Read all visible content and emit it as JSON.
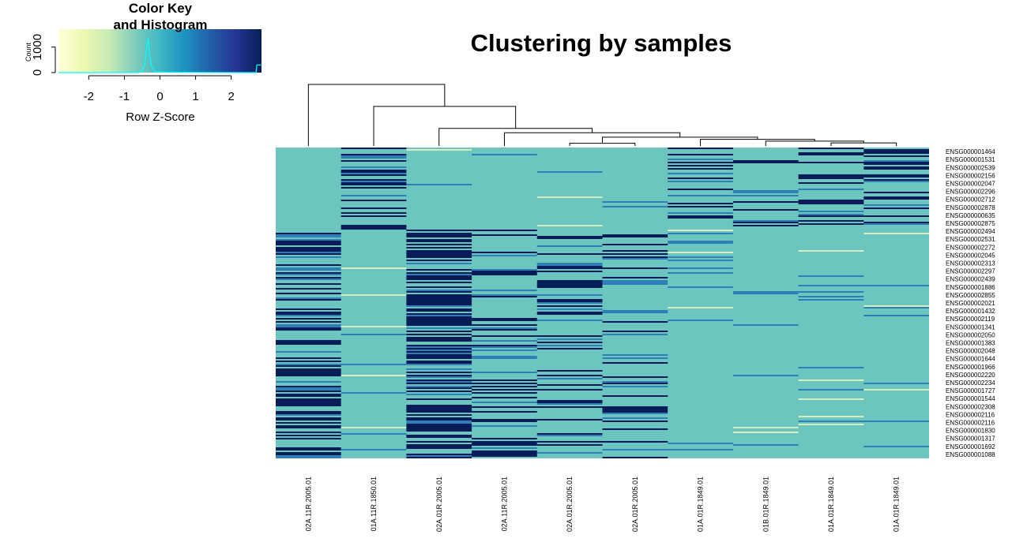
{
  "chart_data": {
    "type": "heatmap",
    "title": "Clustering by samples",
    "color_key": {
      "title_line1": "Color Key",
      "title_line2": "and Histogram",
      "xlabel": "Row Z-Score",
      "ylabel": "Count",
      "x_ticks": [
        "-2",
        "-1",
        "0",
        "1",
        "2"
      ],
      "x_tick_values": [
        -2,
        -1,
        0,
        1,
        2
      ],
      "y_ticks": [
        "0",
        "1000"
      ],
      "y_tick_values": [
        0,
        1000
      ],
      "xlim": [
        -2.85,
        2.85
      ],
      "ylim": [
        0,
        1700
      ],
      "colors": [
        "#ffffd9",
        "#edf8b1",
        "#c7e9b4",
        "#7fcdbb",
        "#41b6c4",
        "#1d91c0",
        "#225ea8",
        "#253494",
        "#081d58"
      ],
      "histogram_color": "#00ffff",
      "histogram": [
        [
          -2.85,
          0
        ],
        [
          -0.6,
          0
        ],
        [
          -0.5,
          60
        ],
        [
          -0.42,
          350
        ],
        [
          -0.37,
          1000
        ],
        [
          -0.33,
          1350
        ],
        [
          -0.29,
          700
        ],
        [
          -0.24,
          250
        ],
        [
          -0.15,
          40
        ],
        [
          0.2,
          10
        ],
        [
          2.7,
          0
        ],
        [
          2.72,
          300
        ],
        [
          2.85,
          300
        ]
      ]
    },
    "columns": [
      "02A.11R.2005.01",
      "01A.11R.1850.01",
      "02A.01R.2005.01",
      "02A.11R.2005.01",
      "02A.01R.2005.01",
      "02A.01R.2005.01",
      "01A.01R.1849.01",
      "01B.01R.1849.01",
      "01A.01R.1849.01",
      "01A.01R.1849.01"
    ],
    "rows": [
      "ENSG000001464",
      "ENSG000001531",
      "ENSG000002539",
      "ENSG000002156",
      "ENSG000002047",
      "ENSG000002296",
      "ENSG000002712",
      "ENSG000002878",
      "ENSG000000635",
      "ENSG000002875",
      "ENSG000002494",
      "ENSG000002531",
      "ENSG000002272",
      "ENSG000002045",
      "ENSG000002313",
      "ENSG000002297",
      "ENSG000002439",
      "ENSG000001886",
      "ENSG000002855",
      "ENSG000002021",
      "ENSG000001432",
      "ENSG000002119",
      "ENSG000001341",
      "ENSG000002050",
      "ENSG000001383",
      "ENSG000002048",
      "ENSG000001644",
      "ENSG000001966",
      "ENSG000002220",
      "ENSG000002234",
      "ENSG000001727",
      "ENSG000001544",
      "ENSG000002308",
      "ENSG000002116",
      "ENSG000002116",
      "ENSG000001830",
      "ENSG000001317",
      "ENSG000001692",
      "ENSG000001088"
    ],
    "dendrogram": [
      {
        "a": 5,
        "b": 6,
        "h": 0.06
      },
      {
        "a": 9,
        "b": 10,
        "h": 0.07
      },
      {
        "a": 8,
        "b": "n2",
        "h": 0.11
      },
      {
        "a": 7,
        "b": "n3",
        "h": 0.15
      },
      {
        "a": "n1",
        "b": "n4",
        "h": 0.2
      },
      {
        "a": 4,
        "b": "n5",
        "h": 0.3
      },
      {
        "a": 3,
        "b": "n6",
        "h": 0.4
      },
      {
        "a": 2,
        "b": "n7",
        "h": 0.9
      },
      {
        "a": 1,
        "b": "n8",
        "h": 1.4
      }
    ],
    "column_order": [
      1,
      2,
      3,
      4,
      5,
      6,
      7,
      8,
      9,
      10
    ],
    "cell_pattern": {
      "base_color": "#6cc5be",
      "high_color": "#081d58",
      "mid_color": "#2f7fb6",
      "light_color": "#d6eec0",
      "high_block_columns": {
        "2": {
          "rows": [
            0,
            0.27
          ],
          "density": 0.4
        },
        "9": {
          "rows": [
            0,
            0.25
          ],
          "density": 0.3
        },
        "10": {
          "rows": [
            0,
            0.25
          ],
          "density": 0.35
        },
        "7": {
          "rows": [
            0,
            0.25
          ],
          "density": 0.25
        },
        "8": {
          "rows": [
            0,
            0.25
          ],
          "density": 0.15
        },
        "1": {
          "rows": [
            0.27,
            1.0
          ],
          "density": 0.4
        },
        "3": {
          "rows": [
            0.26,
            1.0
          ],
          "density": 0.55
        },
        "4": {
          "rows": [
            0.25,
            1.0
          ],
          "density": 0.15
        },
        "5": {
          "rows": [
            0.26,
            1.0
          ],
          "density": 0.2
        },
        "6": {
          "rows": [
            0.26,
            1.0
          ],
          "density": 0.12
        }
      }
    }
  }
}
